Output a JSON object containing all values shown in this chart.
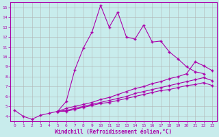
{
  "xlabel": "Windchill (Refroidissement éolien,°C)",
  "background_color": "#c8ecec",
  "grid_color": "#b0b0b0",
  "line_color": "#aa00aa",
  "x_main": [
    0,
    1,
    2,
    3,
    4,
    5,
    6,
    7,
    8,
    9,
    10,
    11,
    12,
    13,
    14,
    15,
    16,
    17,
    18,
    19,
    20,
    21,
    22,
    23
  ],
  "y_main": [
    4.6,
    4.0,
    3.7,
    4.1,
    4.3,
    4.5,
    5.5,
    8.7,
    10.9,
    12.5,
    15.2,
    13.0,
    14.5,
    12.0,
    11.8,
    13.2,
    11.5,
    11.6,
    10.5,
    9.8,
    9.0,
    8.5,
    8.3,
    null
  ],
  "x_fan": [
    5,
    6,
    7,
    8,
    9,
    10,
    11,
    12,
    13,
    14,
    15,
    16,
    17,
    18,
    19,
    20,
    21,
    22,
    23
  ],
  "y_fan1": [
    4.5,
    4.8,
    5.0,
    5.2,
    5.4,
    5.7,
    5.9,
    6.2,
    6.5,
    6.8,
    7.0,
    7.3,
    7.5,
    7.8,
    8.0,
    8.3,
    9.5,
    9.1,
    8.6
  ],
  "y_fan2": [
    4.5,
    4.6,
    4.8,
    5.0,
    5.2,
    5.4,
    5.6,
    5.8,
    6.0,
    6.3,
    6.5,
    6.7,
    6.9,
    7.1,
    7.3,
    7.5,
    7.7,
    7.9,
    7.6
  ],
  "y_fan3": [
    4.5,
    4.5,
    4.7,
    4.9,
    5.1,
    5.3,
    5.4,
    5.6,
    5.8,
    6.0,
    6.2,
    6.4,
    6.6,
    6.7,
    6.9,
    7.1,
    7.2,
    7.4,
    7.1
  ],
  "ylim": [
    3.5,
    15.5
  ],
  "xlim": [
    -0.5,
    23.5
  ],
  "yticks": [
    4,
    5,
    6,
    7,
    8,
    9,
    10,
    11,
    12,
    13,
    14,
    15
  ],
  "xticks": [
    0,
    1,
    2,
    3,
    4,
    5,
    6,
    7,
    8,
    9,
    10,
    11,
    12,
    13,
    14,
    15,
    16,
    17,
    18,
    19,
    20,
    21,
    22,
    23
  ],
  "marker": "+",
  "markersize": 3.5,
  "linewidth": 0.8,
  "tick_fontsize": 4.5,
  "xlabel_fontsize": 5.5,
  "font_family": "monospace"
}
